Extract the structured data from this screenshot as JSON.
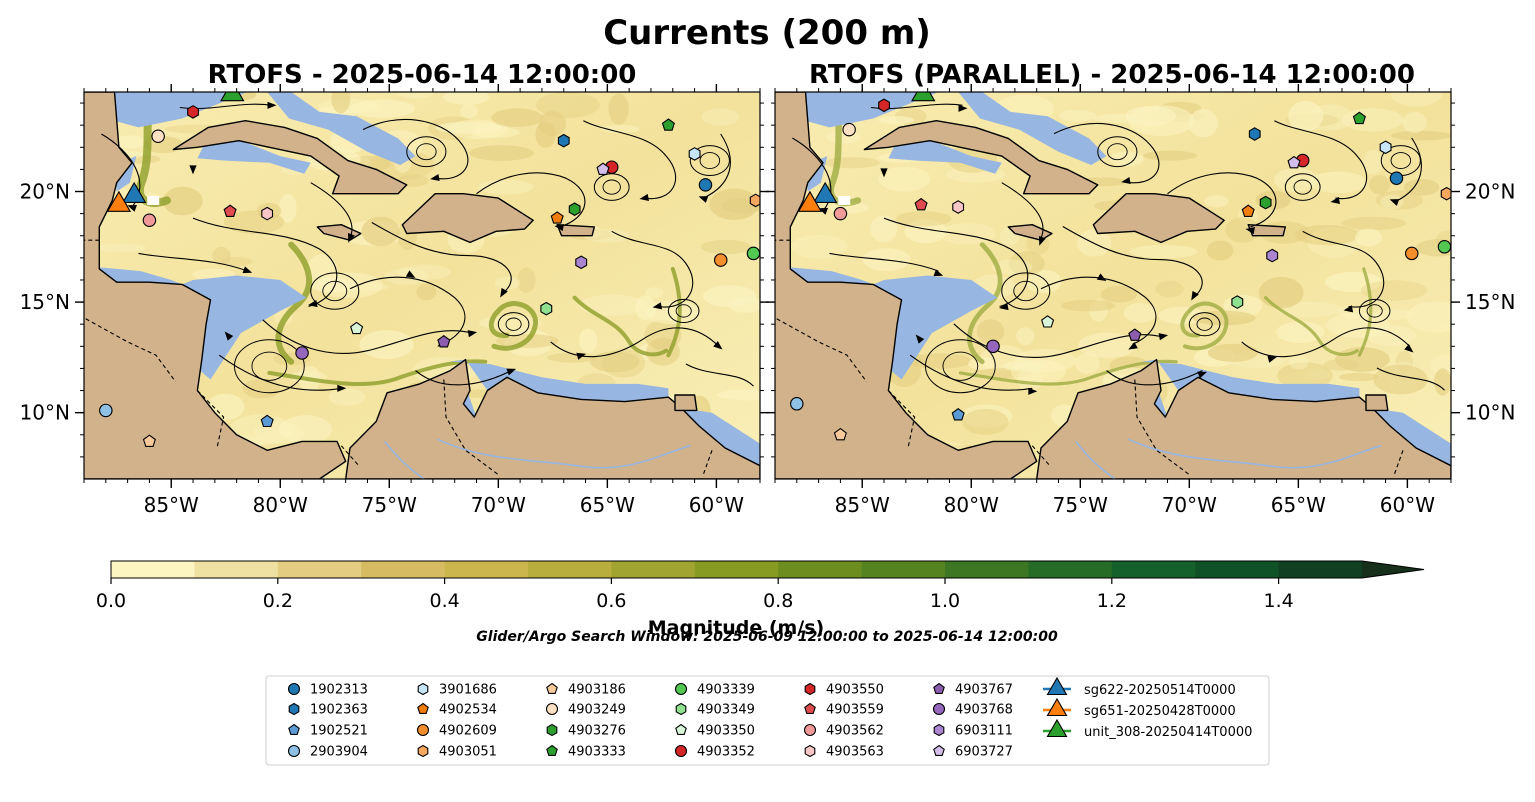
{
  "figure": {
    "title": "Currents (200 m)"
  },
  "chart_data": {
    "type": "heatmap",
    "panels": [
      {
        "title": "RTOFS - 2025-06-14 12:00:00"
      },
      {
        "title": "RTOFS (PARALLEL) - 2025-06-14 12:00:00"
      }
    ],
    "lon_range": [
      -89.0,
      -58.0
    ],
    "lat_range": [
      7.0,
      24.5
    ],
    "x_ticks": [
      -85,
      -80,
      -75,
      -70,
      -65,
      -60
    ],
    "x_tick_labels": [
      "85°W",
      "80°W",
      "75°W",
      "70°W",
      "65°W",
      "60°W"
    ],
    "y_ticks": [
      10,
      15,
      20
    ],
    "y_tick_labels": [
      "10°N",
      "15°N",
      "20°N"
    ],
    "colorbar": {
      "label": "Magnitude (m/s)",
      "range": [
        0.0,
        1.5
      ],
      "extend": "max",
      "ticks": [
        0.0,
        0.2,
        0.4,
        0.6,
        0.8,
        1.0,
        1.2,
        1.4
      ],
      "tick_labels": [
        "0.0",
        "0.2",
        "0.4",
        "0.6",
        "0.8",
        "1.0",
        "1.2",
        "1.4"
      ],
      "colors": [
        "#fcf5c2",
        "#efe1a1",
        "#e2cd80",
        "#d6bb62",
        "#cbb64e",
        "#b8ae3e",
        "#a1a430",
        "#879a22",
        "#6d8e1f",
        "#558320",
        "#3d7723",
        "#266b26",
        "#14612b",
        "#0f5227",
        "#103f21",
        "#17301b"
      ]
    },
    "search_window": "Glider/Argo Search Window: 2025-06-09 12:00:00 to 2025-06-14 12:00:00",
    "floats": [
      {
        "id": "1902313",
        "marker": "circle",
        "color": "#1f77b4",
        "lon": -60.5,
        "lat": 20.3
      },
      {
        "id": "1902363",
        "marker": "hexagon",
        "color": "#1f77b4",
        "lon": -67.0,
        "lat": 22.3
      },
      {
        "id": "1902521",
        "marker": "pentagon",
        "color": "#5b9bd5",
        "lon": -80.6,
        "lat": 9.6
      },
      {
        "id": "2903904",
        "marker": "circle",
        "color": "#8fc1e6",
        "lon": -88.0,
        "lat": 10.1
      },
      {
        "id": "3901686",
        "marker": "hexagon",
        "color": "#c6e5f7",
        "lon": -61.0,
        "lat": 21.7
      },
      {
        "id": "4902534",
        "marker": "pentagon",
        "color": "#f07c0a",
        "lon": -67.3,
        "lat": 18.8
      },
      {
        "id": "4902609",
        "marker": "circle",
        "color": "#f28e2b",
        "lon": -59.8,
        "lat": 16.9
      },
      {
        "id": "4903051",
        "marker": "hexagon",
        "color": "#f7a85e",
        "lon": -58.2,
        "lat": 19.6
      },
      {
        "id": "4903186",
        "marker": "pentagon",
        "color": "#f8c99a",
        "lon": -86.0,
        "lat": 8.7
      },
      {
        "id": "4903249",
        "marker": "circle",
        "color": "#fde1c2",
        "lon": -85.6,
        "lat": 22.5
      },
      {
        "id": "4903276",
        "marker": "hexagon",
        "color": "#2ca02c",
        "lon": -66.5,
        "lat": 19.2
      },
      {
        "id": "4903333",
        "marker": "pentagon",
        "color": "#2ca02c",
        "lon": -62.2,
        "lat": 23.0
      },
      {
        "id": "4903339",
        "marker": "circle",
        "color": "#52c752",
        "lon": -58.3,
        "lat": 17.2
      },
      {
        "id": "4903349",
        "marker": "hexagon",
        "color": "#8fe08f",
        "lon": -67.8,
        "lat": 14.7
      },
      {
        "id": "4903350",
        "marker": "pentagon",
        "color": "#d8f5d8",
        "lon": -76.5,
        "lat": 13.8
      },
      {
        "id": "4903352",
        "marker": "circle",
        "color": "#d62728",
        "lon": -64.8,
        "lat": 21.1
      },
      {
        "id": "4903550",
        "marker": "hexagon",
        "color": "#d62728",
        "lon": -84.0,
        "lat": 23.6
      },
      {
        "id": "4903559",
        "marker": "pentagon",
        "color": "#e04c4d",
        "lon": -82.3,
        "lat": 19.1
      },
      {
        "id": "4903562",
        "marker": "circle",
        "color": "#f09999",
        "lon": -86.0,
        "lat": 18.7
      },
      {
        "id": "4903563",
        "marker": "hexagon",
        "color": "#f8c6c6",
        "lon": -80.6,
        "lat": 19.0
      },
      {
        "id": "4903767",
        "marker": "pentagon",
        "color": "#8c5cae",
        "lon": -72.5,
        "lat": 13.2
      },
      {
        "id": "4903768",
        "marker": "circle",
        "color": "#9467bd",
        "lon": -79.0,
        "lat": 12.7
      },
      {
        "id": "6903111",
        "marker": "hexagon",
        "color": "#ab85d1",
        "lon": -66.2,
        "lat": 16.8
      },
      {
        "id": "6903727",
        "marker": "pentagon",
        "color": "#d3bdea",
        "lon": -65.2,
        "lat": 21.0
      }
    ],
    "gliders": [
      {
        "id": "sg622-20250514T0000",
        "marker": "triangle",
        "color": "#1f77b4",
        "lon": -86.7,
        "lat": 19.8
      },
      {
        "id": "sg651-20250428T0000",
        "marker": "triangle",
        "color": "#ff7f0e",
        "lon": -87.4,
        "lat": 19.4
      },
      {
        "id": "unit_308-20250414T0000",
        "marker": "triangle",
        "color": "#2ca02c",
        "lon": -82.2,
        "lat": 24.4
      }
    ]
  }
}
